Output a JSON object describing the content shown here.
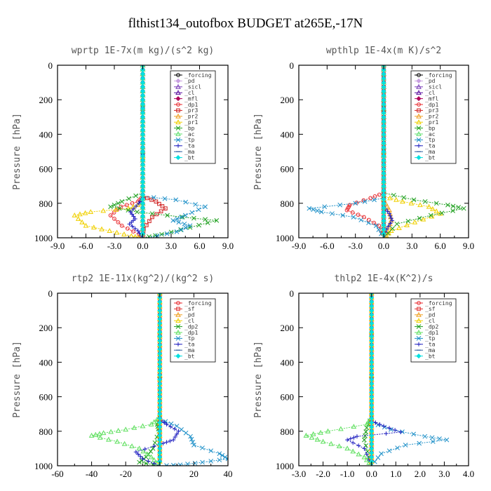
{
  "title": "flthist134_outofbox  BUDGET at265E,-17N",
  "chart_data": [
    {
      "type": "line",
      "title": "wprtp  1E-7x(m kg)/(s^2 kg)",
      "ylabel": "Pressure [hPa]",
      "xlim": [
        -9,
        9
      ],
      "ylim": [
        1000,
        0
      ],
      "xticks": [
        "-9.0",
        "-6.0",
        "-3.0",
        "0.0",
        "3.0",
        "6.0",
        "9.0"
      ],
      "yticks": [
        "0",
        "200",
        "400",
        "600",
        "800",
        "1000"
      ],
      "grid": false,
      "legend_position": "upper-right",
      "series": [
        {
          "name": "_forcing",
          "color": "#000000",
          "marker": "circle",
          "x": [
            0,
            0
          ],
          "y": [
            0,
            1000
          ]
        },
        {
          "name": "_pd",
          "color": "#c8a0e0",
          "marker": "diamond",
          "x": [
            0,
            0
          ],
          "y": [
            0,
            1000
          ]
        },
        {
          "name": "_sicl",
          "color": "#7a3db8",
          "marker": "triangle",
          "x": [
            0,
            0
          ],
          "y": [
            0,
            1000
          ]
        },
        {
          "name": "_cl",
          "color": "#5a0fa0",
          "marker": "triangle",
          "x": [
            0,
            0
          ],
          "y": [
            0,
            1000
          ]
        },
        {
          "name": "_mfl",
          "color": "#b0005a",
          "marker": "diamond",
          "x": [
            0,
            0
          ],
          "y": [
            0,
            1000
          ]
        },
        {
          "name": "_dp1",
          "color": "#e8282d",
          "marker": "circle",
          "x": [
            0,
            0,
            -0.5,
            -2.3,
            -3.4,
            -2.2,
            -0.4,
            0
          ],
          "y": [
            0,
            760,
            790,
            820,
            870,
            930,
            980,
            1000
          ]
        },
        {
          "name": "_pr3",
          "color": "#d02020",
          "marker": "square",
          "x": [
            0,
            0,
            1.4,
            2.4,
            1.0,
            0.1,
            0
          ],
          "y": [
            0,
            760,
            790,
            830,
            880,
            950,
            1000
          ]
        },
        {
          "name": "_pr2",
          "color": "#f0a020",
          "marker": "triangle",
          "x": [
            0,
            0
          ],
          "y": [
            0,
            1000
          ]
        },
        {
          "name": "_pr1",
          "color": "#f0d000",
          "marker": "triangle",
          "x": [
            0,
            0,
            -1.5,
            -5.5,
            -7.2,
            -6.0,
            -3.5,
            -1.2,
            0
          ],
          "y": [
            0,
            800,
            830,
            850,
            870,
            930,
            960,
            990,
            1000
          ]
        },
        {
          "name": "_bp",
          "color": "#20a020",
          "marker": "x",
          "x": [
            0,
            0,
            -2.2,
            -3.4,
            -0.6,
            4.2,
            7.8,
            5.0,
            2.0,
            0
          ],
          "y": [
            0,
            740,
            790,
            820,
            850,
            880,
            900,
            940,
            980,
            1000
          ]
        },
        {
          "name": "_ac",
          "color": "#60e070",
          "marker": "triangle",
          "x": [
            0,
            0
          ],
          "y": [
            0,
            1000
          ]
        },
        {
          "name": "_tp",
          "color": "#1e90c8",
          "marker": "x",
          "x": [
            0,
            0,
            3.5,
            6.6,
            4.5,
            3.2,
            5.0,
            3.6,
            0.5
          ],
          "y": [
            0,
            760,
            780,
            820,
            870,
            900,
            930,
            965,
            1000
          ]
        },
        {
          "name": "_ta",
          "color": "#2020c0",
          "marker": "plus",
          "x": [
            0,
            0,
            -0.4,
            -1.3,
            -0.8,
            -1.4,
            -0.5,
            0
          ],
          "y": [
            0,
            770,
            800,
            850,
            890,
            920,
            960,
            1000
          ]
        },
        {
          "name": "_ma",
          "color": "#3060a0",
          "marker": "dash",
          "x": [
            0,
            0
          ],
          "y": [
            0,
            1000
          ]
        },
        {
          "name": "_bt",
          "color": "#00e0e0",
          "marker": "diamond",
          "x": [
            0,
            0
          ],
          "y": [
            0,
            1000
          ]
        }
      ]
    },
    {
      "type": "line",
      "title": "wpthlp  1E-4x(m K)/s^2",
      "ylabel": "Pressure [hPa]",
      "xlim": [
        -9,
        9
      ],
      "ylim": [
        1000,
        0
      ],
      "xticks": [
        "-9.0",
        "-6.0",
        "-3.0",
        "0.0",
        "3.0",
        "6.0",
        "9.0"
      ],
      "yticks": [
        "0",
        "200",
        "400",
        "600",
        "800",
        "1000"
      ],
      "grid": false,
      "legend_position": "upper-right",
      "series": [
        {
          "name": "_forcing",
          "color": "#000000",
          "marker": "circle",
          "x": [
            0,
            0
          ],
          "y": [
            0,
            1000
          ]
        },
        {
          "name": "_pd",
          "color": "#c8a0e0",
          "marker": "diamond",
          "x": [
            0,
            0
          ],
          "y": [
            0,
            1000
          ]
        },
        {
          "name": "_sicl",
          "color": "#7a3db8",
          "marker": "triangle",
          "x": [
            0,
            0
          ],
          "y": [
            0,
            1000
          ]
        },
        {
          "name": "_cl",
          "color": "#5a0fa0",
          "marker": "triangle",
          "x": [
            0,
            0
          ],
          "y": [
            0,
            1000
          ]
        },
        {
          "name": "_mfl",
          "color": "#b0005a",
          "marker": "diamond",
          "x": [
            0,
            0
          ],
          "y": [
            0,
            1000
          ]
        },
        {
          "name": "_dp1",
          "color": "#e8282d",
          "marker": "circle",
          "x": [
            0,
            0,
            -1.4,
            -3.6,
            -3.9,
            -2.1,
            -0.5,
            0
          ],
          "y": [
            0,
            740,
            770,
            810,
            840,
            880,
            930,
            1000
          ]
        },
        {
          "name": "_pr3",
          "color": "#d02020",
          "marker": "square",
          "x": [
            0,
            0
          ],
          "y": [
            0,
            1000
          ]
        },
        {
          "name": "_pr2",
          "color": "#f0a020",
          "marker": "triangle",
          "x": [
            0,
            0,
            0.6,
            0.8,
            0.4,
            0
          ],
          "y": [
            0,
            780,
            840,
            900,
            960,
            1000
          ]
        },
        {
          "name": "_pr1",
          "color": "#f0d000",
          "marker": "triangle",
          "x": [
            0,
            0,
            2.0,
            4.8,
            6.0,
            3.3,
            0.8,
            0
          ],
          "y": [
            0,
            760,
            790,
            820,
            860,
            910,
            960,
            1000
          ]
        },
        {
          "name": "_bp",
          "color": "#20a020",
          "marker": "x",
          "x": [
            0,
            0,
            3.2,
            6.8,
            8.5,
            5.0,
            1.4,
            0
          ],
          "y": [
            0,
            740,
            780,
            810,
            830,
            870,
            920,
            1000
          ]
        },
        {
          "name": "_ac",
          "color": "#60e070",
          "marker": "triangle",
          "x": [
            0,
            0
          ],
          "y": [
            0,
            1000
          ]
        },
        {
          "name": "_tp",
          "color": "#1e90c8",
          "marker": "x",
          "x": [
            0,
            0,
            -3.0,
            -7.9,
            -6.6,
            -3.2,
            -0.8,
            0
          ],
          "y": [
            0,
            770,
            800,
            830,
            850,
            880,
            930,
            1000
          ]
        },
        {
          "name": "_ta",
          "color": "#2020c0",
          "marker": "plus",
          "x": [
            0,
            0,
            0.6,
            0.9,
            0.3,
            0
          ],
          "y": [
            0,
            820,
            860,
            900,
            950,
            1000
          ]
        },
        {
          "name": "_ma",
          "color": "#3060a0",
          "marker": "dash",
          "x": [
            0,
            0
          ],
          "y": [
            0,
            1000
          ]
        },
        {
          "name": "_bt",
          "color": "#00e0e0",
          "marker": "diamond",
          "x": [
            0,
            0
          ],
          "y": [
            0,
            1000
          ]
        }
      ]
    },
    {
      "type": "line",
      "title": "rtp2  1E-11x(kg^2)/(kg^2 s)",
      "ylabel": "Pressure [hPa]",
      "xlim": [
        -60,
        40
      ],
      "ylim": [
        1000,
        0
      ],
      "xticks": [
        "-60",
        "-40",
        "-20",
        "0",
        "20",
        "40"
      ],
      "yticks": [
        "0",
        "200",
        "400",
        "600",
        "800",
        "1000"
      ],
      "grid": false,
      "legend_position": "upper-right",
      "series": [
        {
          "name": "_forcing",
          "color": "#e8282d",
          "marker": "circle",
          "x": [
            0,
            0
          ],
          "y": [
            0,
            1000
          ]
        },
        {
          "name": "_sf",
          "color": "#e03030",
          "marker": "square",
          "x": [
            0,
            0
          ],
          "y": [
            0,
            1000
          ]
        },
        {
          "name": "_pd",
          "color": "#f0a020",
          "marker": "triangle",
          "x": [
            0,
            0
          ],
          "y": [
            0,
            1000
          ]
        },
        {
          "name": "_cl",
          "color": "#f0d000",
          "marker": "triangle",
          "x": [
            0,
            0
          ],
          "y": [
            0,
            1000
          ]
        },
        {
          "name": "_dp2",
          "color": "#20a020",
          "marker": "x",
          "x": [
            0,
            0,
            -1.5,
            -0.5,
            -4,
            -8,
            -12,
            0
          ],
          "y": [
            0,
            720,
            760,
            800,
            900,
            950,
            980,
            1000
          ]
        },
        {
          "name": "_dp1",
          "color": "#60e060",
          "marker": "triangle",
          "x": [
            0,
            0,
            -5,
            -20,
            -33,
            -40,
            -25,
            -12,
            -5,
            0
          ],
          "y": [
            0,
            720,
            760,
            790,
            810,
            825,
            860,
            900,
            950,
            1000
          ]
        },
        {
          "name": "_tp",
          "color": "#1e90c8",
          "marker": "x",
          "x": [
            0,
            0,
            10,
            18,
            20,
            35,
            40,
            25,
            12,
            0
          ],
          "y": [
            0,
            730,
            770,
            830,
            880,
            930,
            960,
            980,
            995,
            1000
          ]
        },
        {
          "name": "_ta",
          "color": "#2020c0",
          "marker": "plus",
          "x": [
            0,
            0,
            4,
            11,
            8,
            2,
            -14,
            -10,
            0
          ],
          "y": [
            0,
            730,
            760,
            800,
            850,
            870,
            920,
            960,
            1000
          ]
        },
        {
          "name": "_ma",
          "color": "#3060a0",
          "marker": "dash",
          "x": [
            0,
            0
          ],
          "y": [
            0,
            1000
          ]
        },
        {
          "name": "_bt",
          "color": "#00e0e0",
          "marker": "diamond",
          "x": [
            0,
            0
          ],
          "y": [
            0,
            1000
          ]
        }
      ]
    },
    {
      "type": "line",
      "title": "thlp2  1E-4x(K^2)/s",
      "ylabel": "Pressure [hPa]",
      "xlim": [
        -3,
        4
      ],
      "ylim": [
        1000,
        0
      ],
      "xticks": [
        "-3.0",
        "-2.0",
        "-1.0",
        "0.0",
        "1.0",
        "2.0",
        "3.0",
        "4.0"
      ],
      "yticks": [
        "0",
        "200",
        "400",
        "600",
        "800",
        "1000"
      ],
      "grid": false,
      "legend_position": "upper-right",
      "series": [
        {
          "name": "_forcing",
          "color": "#e8282d",
          "marker": "circle",
          "x": [
            0,
            0
          ],
          "y": [
            0,
            1000
          ]
        },
        {
          "name": "_sf",
          "color": "#e03030",
          "marker": "square",
          "x": [
            0,
            0
          ],
          "y": [
            0,
            1000
          ]
        },
        {
          "name": "_pd",
          "color": "#f0a020",
          "marker": "triangle",
          "x": [
            0,
            0
          ],
          "y": [
            0,
            1000
          ]
        },
        {
          "name": "_cl",
          "color": "#f0d000",
          "marker": "triangle",
          "x": [
            0,
            0
          ],
          "y": [
            0,
            1000
          ]
        },
        {
          "name": "_dp2",
          "color": "#20a020",
          "marker": "x",
          "x": [
            0,
            0,
            -0.2,
            -0.3,
            -0.1,
            0
          ],
          "y": [
            0,
            720,
            780,
            850,
            950,
            1000
          ]
        },
        {
          "name": "_dp1",
          "color": "#60e060",
          "marker": "triangle",
          "x": [
            0,
            0,
            -0.2,
            -1.8,
            -2.7,
            -2.0,
            -1.0,
            -0.3,
            0
          ],
          "y": [
            0,
            720,
            760,
            800,
            825,
            860,
            900,
            950,
            1000
          ]
        },
        {
          "name": "_tp",
          "color": "#1e90c8",
          "marker": "x",
          "x": [
            0,
            0,
            0.8,
            2.2,
            3.1,
            1.4,
            0.4,
            0
          ],
          "y": [
            0,
            750,
            790,
            830,
            850,
            880,
            930,
            1000
          ]
        },
        {
          "name": "_ta",
          "color": "#2020c0",
          "marker": "plus",
          "x": [
            0,
            0,
            0.5,
            1.2,
            -0.6,
            -1.0,
            -0.3,
            0
          ],
          "y": [
            0,
            740,
            770,
            805,
            830,
            850,
            900,
            1000
          ]
        },
        {
          "name": "_ma",
          "color": "#3060a0",
          "marker": "dash",
          "x": [
            0,
            0
          ],
          "y": [
            0,
            1000
          ]
        },
        {
          "name": "_bt",
          "color": "#00e0e0",
          "marker": "diamond",
          "x": [
            0,
            0
          ],
          "y": [
            0,
            1000
          ]
        }
      ]
    }
  ]
}
